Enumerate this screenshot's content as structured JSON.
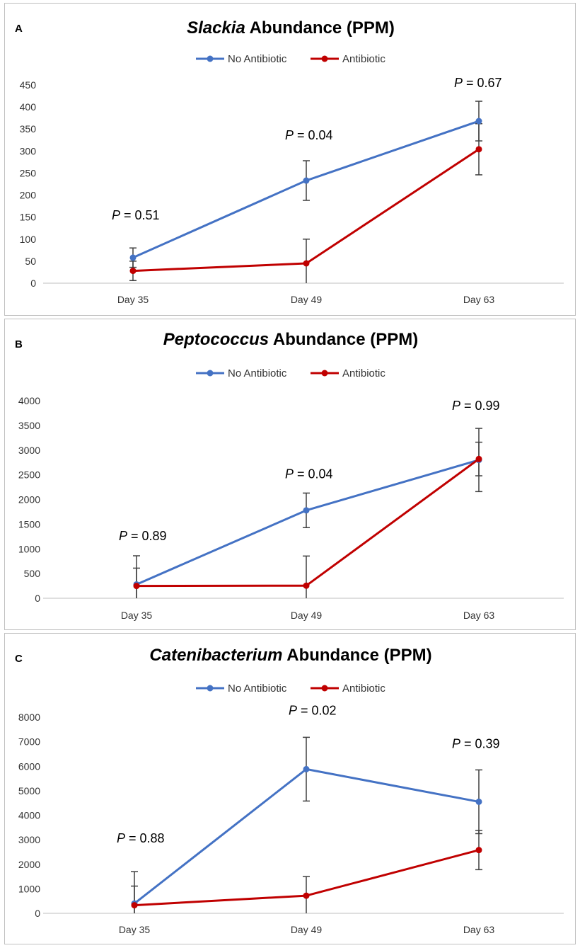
{
  "chart_data": [
    {
      "type": "line",
      "panel_letter": "A",
      "title_genus": "Slackia",
      "title_rest": " Abundance (PPM)",
      "categories": [
        "Day 35",
        "Day 49",
        "Day 63"
      ],
      "ylim": [
        0,
        450
      ],
      "yticks": [
        0,
        50,
        100,
        150,
        200,
        250,
        300,
        350,
        400,
        450
      ],
      "series": [
        {
          "name": "No Antibiotic",
          "color": "#4472c4",
          "values": [
            58,
            233,
            368
          ],
          "err": [
            22,
            45,
            45
          ]
        },
        {
          "name": "Antibiotic",
          "color": "#c00000",
          "values": [
            28,
            45,
            304
          ],
          "err": [
            22,
            55,
            58
          ]
        }
      ],
      "pvalues": [
        {
          "prefix": "P",
          "text": " = 0.51"
        },
        {
          "prefix": "P",
          "text": " = 0.04"
        },
        {
          "prefix": "P",
          "text": " = 0.67"
        }
      ]
    },
    {
      "type": "line",
      "panel_letter": "B",
      "title_genus": "Peptococcus",
      "title_rest": " Abundance (PPM)",
      "categories": [
        "Day 35",
        "Day 49",
        "Day 63"
      ],
      "ylim": [
        0,
        4000
      ],
      "yticks": [
        0,
        500,
        1000,
        1500,
        2000,
        2500,
        3000,
        3500,
        4000
      ],
      "series": [
        {
          "name": "No Antibiotic",
          "color": "#4472c4",
          "values": [
            280,
            1780,
            2800
          ],
          "err": [
            580,
            350,
            640
          ]
        },
        {
          "name": "Antibiotic",
          "color": "#c00000",
          "values": [
            250,
            255,
            2820
          ],
          "err": [
            360,
            600,
            340
          ]
        }
      ],
      "pvalues": [
        {
          "prefix": "P",
          "text": " = 0.89"
        },
        {
          "prefix": "P",
          "text": " = 0.04"
        },
        {
          "prefix": "P",
          "text": " = 0.99"
        }
      ]
    },
    {
      "type": "line",
      "panel_letter": "C",
      "title_genus": "Catenibacterium",
      "title_rest": " Abundance (PPM)",
      "categories": [
        "Day 35",
        "Day 49",
        "Day 63"
      ],
      "ylim": [
        0,
        8000
      ],
      "yticks": [
        0,
        1000,
        2000,
        3000,
        4000,
        5000,
        6000,
        7000,
        8000
      ],
      "series": [
        {
          "name": "No Antibiotic",
          "color": "#4472c4",
          "values": [
            400,
            5880,
            4550
          ],
          "err": [
            1300,
            1300,
            1300
          ]
        },
        {
          "name": "Antibiotic",
          "color": "#c00000",
          "values": [
            330,
            720,
            2580
          ],
          "err": [
            780,
            780,
            800
          ]
        }
      ],
      "pvalues": [
        {
          "prefix": "P",
          "text": " = 0.88"
        },
        {
          "prefix": "P",
          "text": " = 0.02"
        },
        {
          "prefix": "P",
          "text": " = 0.39"
        }
      ]
    }
  ]
}
